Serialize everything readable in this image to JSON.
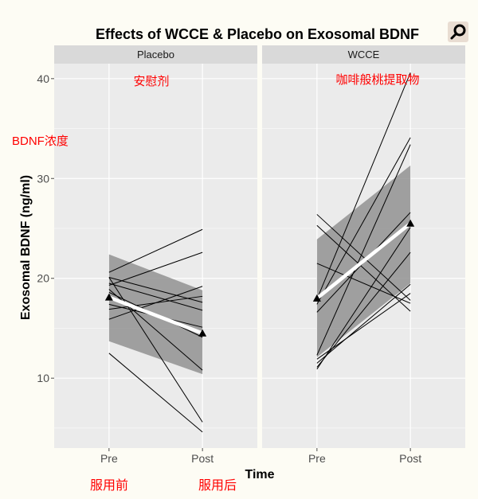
{
  "chart_data": {
    "type": "line",
    "title": "Effects of WCCE & Placebo on Exosomal BDNF",
    "xlabel": "Time",
    "ylabel": "Exosomal BDNF (ng/ml)",
    "categories": [
      "Pre",
      "Post"
    ],
    "ylim": [
      3,
      41.5
    ],
    "yticks": [
      10,
      20,
      30,
      40
    ],
    "grid": true,
    "colors": {
      "panel": "#ebebeb",
      "strip": "#d9d9d9",
      "grid": "#ffffff",
      "line": "#000000",
      "ribbon": "#8c8c8c",
      "mean": "#ffffff",
      "annotation": "#ff0000"
    },
    "panels": [
      {
        "name": "Placebo",
        "annotation": "安慰剂",
        "subjects": [
          [
            20.6,
            24.9
          ],
          [
            20.1,
            17.6
          ],
          [
            19.5,
            16.8
          ],
          [
            19.3,
            22.6
          ],
          [
            18.9,
            10.8
          ],
          [
            18.6,
            14.1
          ],
          [
            17.4,
            15.1
          ],
          [
            16.9,
            18.2
          ],
          [
            15.9,
            19.2
          ],
          [
            12.5,
            4.6
          ],
          [
            20.1,
            5.6
          ]
        ],
        "mean": [
          18.1,
          14.5
        ],
        "ci": [
          [
            13.7,
            22.4
          ],
          [
            10.4,
            18.8
          ]
        ]
      },
      {
        "name": "WCCE",
        "annotation": "咖啡般桃提取物",
        "subjects": [
          [
            26.4,
            17.8
          ],
          [
            25.3,
            16.7
          ],
          [
            21.5,
            17.5
          ],
          [
            17.9,
            40.6
          ],
          [
            17.4,
            34.1
          ],
          [
            16.6,
            26.6
          ],
          [
            12.3,
            33.4
          ],
          [
            11.9,
            18.5
          ],
          [
            11.5,
            19.4
          ],
          [
            11.1,
            22.6
          ],
          [
            10.9,
            25.1
          ]
        ],
        "mean": [
          18.0,
          25.5
        ],
        "ci": [
          [
            12.1,
            23.9
          ],
          [
            19.5,
            31.3
          ]
        ]
      }
    ],
    "annotations": {
      "yaxis": "BDNF浓度",
      "pre": "服用前",
      "post": "服用后"
    }
  },
  "logo": {
    "icon": "magnifier-logo-icon"
  }
}
